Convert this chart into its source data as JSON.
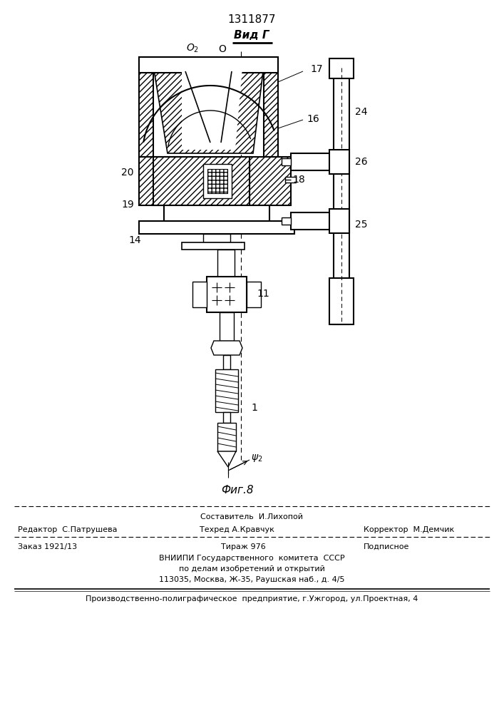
{
  "title": "1311877",
  "view_label": "Вид Г",
  "fig_label": "Фиг.8",
  "bg_color": "#ffffff",
  "line_color": "#000000"
}
